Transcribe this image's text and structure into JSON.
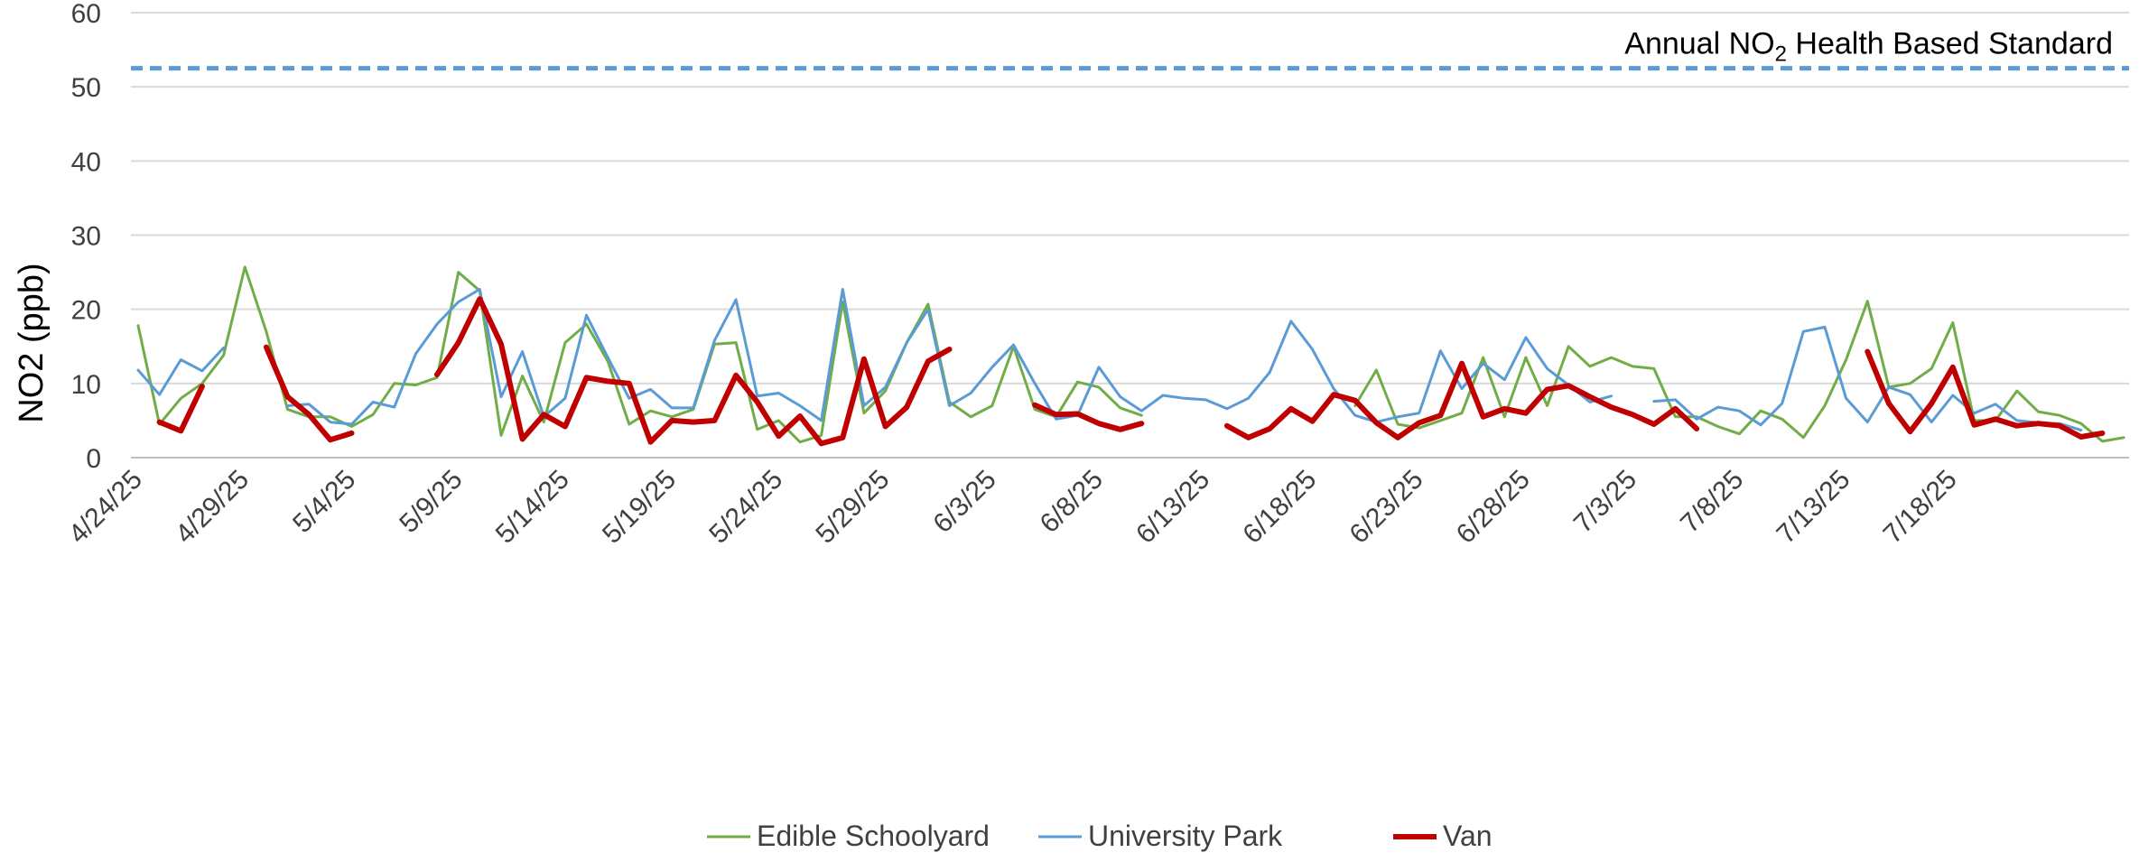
{
  "chart_data": {
    "type": "line",
    "ylabel": "NO2 (ppb)",
    "xlabel": "",
    "ylim": [
      0,
      60
    ],
    "yticks": [
      0,
      10,
      20,
      30,
      40,
      50,
      60
    ],
    "grid": true,
    "legend_position": "bottom",
    "x_labels": [
      "4/24/25",
      "4/29/25",
      "5/4/25",
      "5/9/25",
      "5/14/25",
      "5/19/25",
      "5/24/25",
      "5/29/25",
      "6/3/25",
      "6/8/25",
      "6/13/25",
      "6/18/25",
      "6/23/25",
      "6/28/25",
      "7/3/25",
      "7/8/25",
      "7/13/25",
      "7/18/25"
    ],
    "x_start": "4/24/25",
    "reference_line": {
      "label_main": "Annual NO",
      "label_sub": "2",
      "label_rest": " Health Based Standard",
      "value": 52.5,
      "color": "#5B9BD5",
      "style": "dashed"
    },
    "series": [
      {
        "name": "Edible Schoolyard",
        "color": "#70AD47",
        "values": [
          17.8,
          4.5,
          8,
          10,
          13.8,
          25.7,
          17,
          6.5,
          5.5,
          5.5,
          4.2,
          5.8,
          10,
          9.8,
          10.8,
          25,
          22.5,
          3,
          11,
          4.8,
          15.5,
          18,
          13,
          4.5,
          6.3,
          5.5,
          6.5,
          15.3,
          15.5,
          3.8,
          5,
          2.1,
          3,
          21,
          6,
          9,
          15.5,
          20.7,
          7.5,
          5.5,
          7,
          15,
          6.5,
          5.5,
          10.2,
          9.5,
          6.7,
          5.7,
          null,
          null,
          null,
          null,
          null,
          null,
          null,
          null,
          null,
          7,
          11.8,
          4.5,
          4,
          5,
          6,
          13.5,
          5.5,
          13.5,
          7,
          15,
          12.3,
          13.5,
          12.3,
          12,
          5.5,
          5.5,
          4.2,
          3.2,
          6.3,
          5.2,
          2.7,
          7,
          13.2,
          21.1,
          9.5,
          10,
          12,
          18.2,
          5,
          5,
          9,
          6.2,
          5.7,
          4.6,
          2.2,
          2.7
        ]
      },
      {
        "name": "University Park",
        "color": "#5B9BD5",
        "values": [
          11.8,
          8.5,
          13.2,
          11.7,
          14.8,
          null,
          null,
          7,
          7.2,
          4.8,
          4.5,
          7.5,
          6.8,
          14,
          18,
          21,
          22.7,
          8.2,
          14.3,
          5.5,
          8,
          19.2,
          13.5,
          8,
          9.2,
          6.7,
          6.7,
          15.8,
          21.3,
          8.3,
          8.7,
          7,
          5,
          22.7,
          7,
          9.5,
          15.5,
          20,
          7,
          8.7,
          12.2,
          15.2,
          10,
          5.2,
          5.7,
          12.2,
          8.2,
          6.3,
          8.4,
          8,
          7.8,
          6.6,
          8,
          11.5,
          18.4,
          14.6,
          9.3,
          5.7,
          4.8,
          5.5,
          6,
          14.4,
          9.3,
          12.7,
          10.5,
          16.2,
          12,
          9.8,
          7.5,
          8.3,
          null,
          7.6,
          7.8,
          5.2,
          6.8,
          6.3,
          4.4,
          7.3,
          17,
          17.6,
          8,
          4.8,
          9.5,
          8.5,
          4.8,
          8.4,
          6,
          7.2,
          5,
          4.7,
          4.6,
          3.7
        ]
      },
      {
        "name": "Van",
        "color": "#C00000",
        "values": [
          null,
          4.8,
          3.6,
          9.6,
          null,
          null,
          14.9,
          8.2,
          5.8,
          2.4,
          3.3,
          null,
          null,
          null,
          11.2,
          15.5,
          21.4,
          15.3,
          2.5,
          5.8,
          4.2,
          10.8,
          10.3,
          10,
          2.1,
          5,
          4.8,
          5,
          11.1,
          7.5,
          2.9,
          5.6,
          1.9,
          2.7,
          13.3,
          4.2,
          6.8,
          13,
          14.6,
          null,
          null,
          null,
          7.1,
          5.8,
          5.9,
          4.6,
          3.8,
          4.6,
          null,
          null,
          null,
          4.3,
          2.7,
          3.9,
          6.6,
          4.9,
          8.5,
          7.7,
          4.7,
          2.7,
          4.7,
          5.7,
          12.7,
          5.5,
          6.6,
          6,
          9.2,
          9.7,
          8.2,
          6.8,
          5.8,
          4.5,
          6.6,
          3.9,
          null,
          null,
          null,
          null,
          null,
          null,
          null,
          14.3,
          7.3,
          3.5,
          7.3,
          12.2,
          4.4,
          5.2,
          4.3,
          4.6,
          4.3,
          2.8,
          3.3
        ]
      }
    ]
  }
}
